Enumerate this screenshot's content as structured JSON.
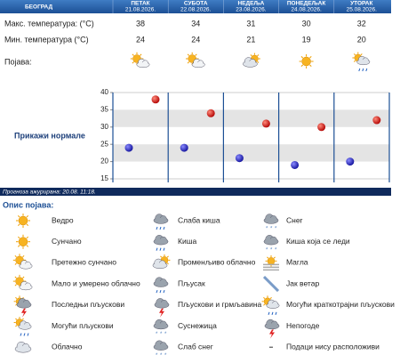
{
  "header": {
    "city": "БЕОГРАД",
    "days": [
      {
        "name": "ПЕТАК",
        "date": "21.08.2026."
      },
      {
        "name": "СУБОТА",
        "date": "22.08.2026."
      },
      {
        "name": "НЕДЕЉА",
        "date": "23.08.2026."
      },
      {
        "name": "ПОНЕДЕЉАК",
        "date": "24.08.2026."
      },
      {
        "name": "УТОРАК",
        "date": "25.08.2026."
      }
    ]
  },
  "rows": {
    "max_label": "Макс. температура: (°C)",
    "max": [
      38,
      34,
      31,
      30,
      32
    ],
    "min_label": "Мин. температура (°C)",
    "min": [
      24,
      24,
      21,
      19,
      20
    ],
    "phenomenon_label": "Појава:"
  },
  "chart": {
    "ylim": [
      15,
      40
    ],
    "yticks": [
      15,
      20,
      25,
      30,
      35,
      40
    ],
    "normals_link": "Прикажи нормале"
  },
  "updated": "Прогноза ажурирана:  20.08. 11:18.",
  "legend": {
    "title": "Опис појава:",
    "items": [
      "Ведро",
      "Сунчано",
      "Претежно сунчано",
      "Мало и умерено облачно",
      "Последњи пљускови",
      "Могући пљускови",
      "Облачно",
      "Слаба киша",
      "Киша",
      "Променљиво облачно",
      "Пљусак",
      "Пљускови и грмљавина",
      "Суснежица",
      "Слаб снег",
      "Снег",
      "Киша која се леди",
      "Магла",
      "Јак ветар",
      "Могући краткотрајни пљускови",
      "Непогоде",
      "Подаци нису расположиви"
    ]
  }
}
